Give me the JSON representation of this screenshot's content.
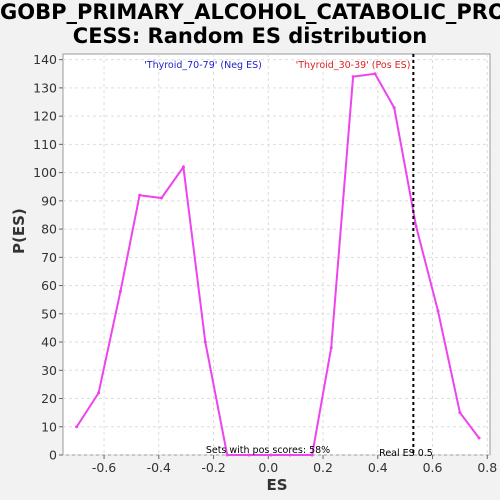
{
  "title_lines": [
    "GOBP_PRIMARY_ALCOHOL_CATABOLIC_PRO",
    "CESS: Random ES distribution"
  ],
  "chart_data": {
    "type": "line",
    "xlabel": "ES",
    "ylabel": "P(ES)",
    "xlim": [
      -0.75,
      0.81
    ],
    "ylim": [
      0,
      142
    ],
    "xticks": [
      -0.6,
      -0.4,
      -0.2,
      0.0,
      0.2,
      0.4,
      0.6,
      0.8
    ],
    "xtick_labels": [
      "-0.6",
      "-0.4",
      "-0.2",
      "0.0",
      "0.2",
      "0.4",
      "0.6",
      "0.8"
    ],
    "yticks": [
      0,
      10,
      20,
      30,
      40,
      50,
      60,
      70,
      80,
      90,
      100,
      110,
      120,
      130,
      140
    ],
    "grid": true,
    "series": [
      {
        "color": "#ee44ee",
        "x": [
          -0.7,
          -0.62,
          -0.54,
          -0.47,
          -0.39,
          -0.31,
          -0.23,
          -0.15,
          -0.07,
          0.01,
          0.08,
          0.16,
          0.23,
          0.31,
          0.39,
          0.46,
          0.54,
          0.62,
          0.7,
          0.77
        ],
        "y": [
          10,
          22,
          58,
          92,
          91,
          102,
          40,
          0,
          0,
          0,
          0,
          0,
          38,
          134,
          135,
          123,
          81,
          51,
          15,
          6
        ]
      }
    ],
    "real_es": 0.53,
    "annotations": {
      "neg_label": "'Thyroid_70-79' (Neg ES)",
      "pos_label": "'Thyroid_30-39' (Pos ES)",
      "sets_label": "Sets with pos scores: 58%",
      "real_label": "Real ES 0.5"
    },
    "colors": {
      "neg": "#2222cc",
      "pos": "#dd2222",
      "line": "#ee44ee",
      "grid": "#dddddd"
    }
  }
}
